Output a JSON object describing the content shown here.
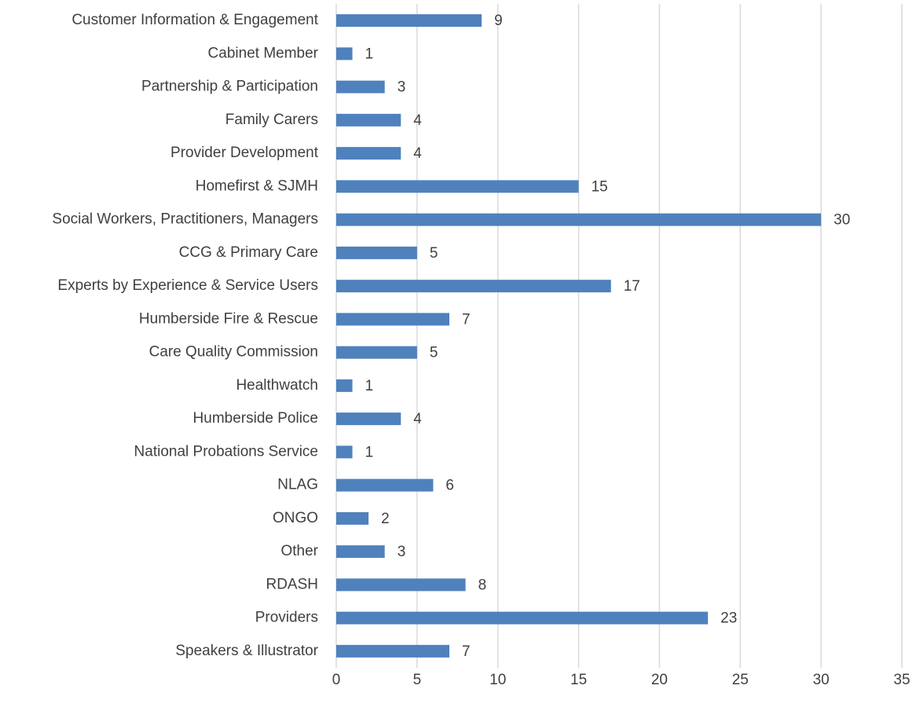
{
  "chart_data": {
    "type": "barh",
    "categories": [
      "Customer Information & Engagement",
      "Cabinet Member",
      "Partnership & Participation",
      "Family Carers",
      "Provider Development",
      "Homefirst & SJMH",
      "Social Workers, Practitioners, Managers",
      "CCG & Primary Care",
      "Experts by Experience & Service Users",
      "Humberside Fire & Rescue",
      "Care Quality Commission",
      "Healthwatch",
      "Humberside Police",
      "National Probations Service",
      "NLAG",
      "ONGO",
      "Other",
      "RDASH",
      "Providers",
      "Speakers & Illustrator"
    ],
    "values": [
      9,
      1,
      3,
      4,
      4,
      15,
      30,
      5,
      17,
      7,
      5,
      1,
      4,
      1,
      6,
      2,
      3,
      8,
      23,
      7
    ],
    "color": "#4f81bd",
    "xlim": [
      0,
      35
    ],
    "xticks": [
      0,
      5,
      10,
      15,
      20,
      25,
      30,
      35
    ],
    "grid": true
  }
}
